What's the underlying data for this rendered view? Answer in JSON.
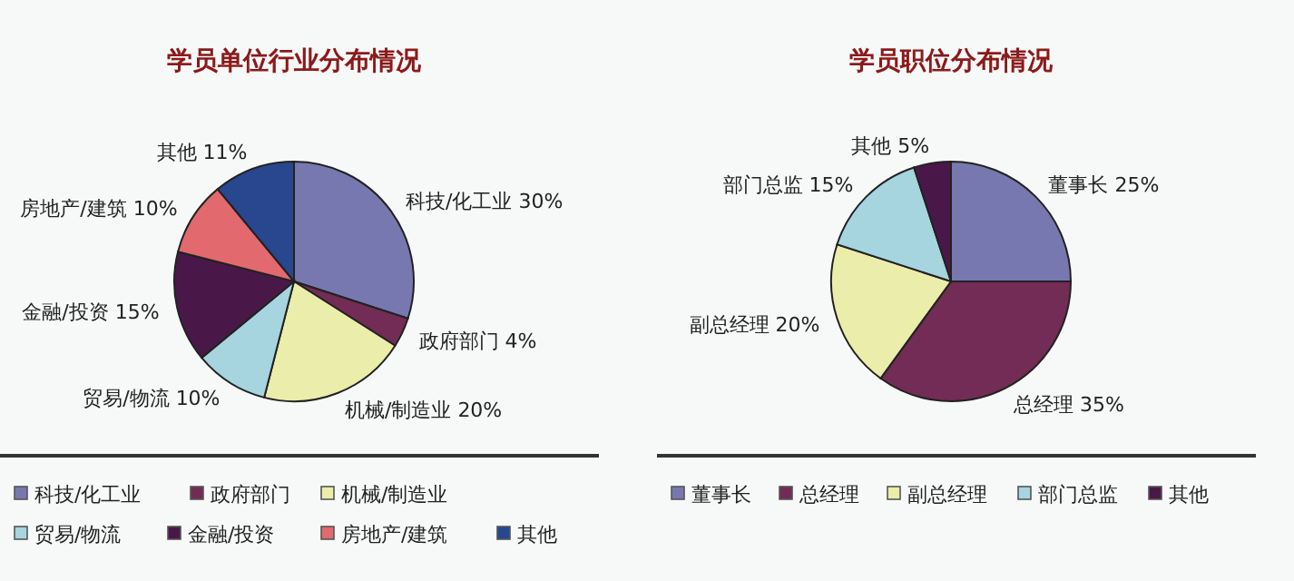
{
  "chart_data": [
    {
      "type": "pie",
      "title": "学员单位行业分布情况",
      "categories": [
        "科技/化工业",
        "政府部门",
        "机械/制造业",
        "贸易/物流",
        "金融/投资",
        "房地产/建筑",
        "其他"
      ],
      "values": [
        30,
        4,
        20,
        10,
        15,
        10,
        11
      ],
      "value_labels": [
        "30%",
        "4%",
        "20%",
        "10%",
        "15%",
        "10%",
        "11%"
      ],
      "colors": [
        "#7878b0",
        "#722c55",
        "#ebedaa",
        "#a6d4df",
        "#4a1848",
        "#e2696d",
        "#28478e"
      ],
      "legend": "bottom"
    },
    {
      "type": "pie",
      "title": "学员职位分布情况",
      "categories": [
        "董事长",
        "总经理",
        "副总经理",
        "部门总监",
        "其他"
      ],
      "values": [
        25,
        35,
        20,
        15,
        5
      ],
      "value_labels": [
        "25%",
        "35%",
        "20%",
        "15%",
        "5%"
      ],
      "colors": [
        "#7878b0",
        "#722c55",
        "#ebedaa",
        "#a6d4df",
        "#4a1848"
      ],
      "legend": "bottom"
    }
  ]
}
